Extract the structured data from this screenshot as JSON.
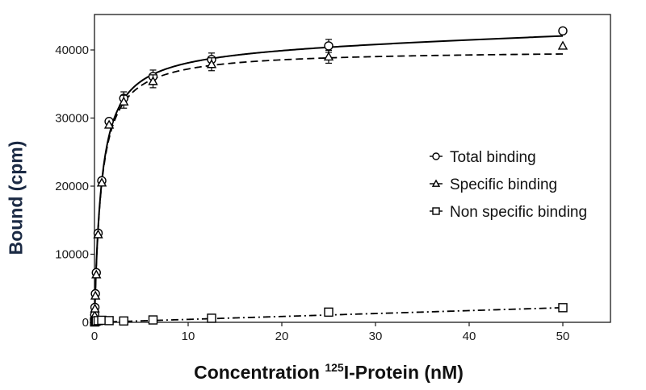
{
  "chart_data": {
    "type": "scatter",
    "title": "",
    "xlabel_prefix": "Concentration ",
    "xlabel_sup": "125",
    "xlabel_suffix": "I-Protein (nM)",
    "xlabel": "Concentration 125I-Protein (nM)",
    "ylabel": "Bound (cpm)",
    "xlim": [
      0,
      55
    ],
    "ylim": [
      0,
      45000
    ],
    "xticks": [
      0,
      10,
      20,
      30,
      40,
      50
    ],
    "yticks": [
      0,
      10000,
      20000,
      30000,
      40000
    ],
    "grid": false,
    "legend_position": "center-right",
    "x": [
      0.024,
      0.049,
      0.098,
      0.195,
      0.39,
      0.78,
      1.56,
      3.125,
      6.25,
      12.5,
      25,
      50
    ],
    "series": [
      {
        "name": "Total binding",
        "marker": "circle",
        "line": "solid",
        "values": [
          500,
          1100,
          2200,
          4200,
          7300,
          13100,
          20800,
          29500,
          32900,
          36100,
          38600,
          40600,
          42800
        ],
        "x": [
          0.012,
          0.024,
          0.049,
          0.098,
          0.195,
          0.39,
          0.78,
          1.56,
          3.125,
          6.25,
          12.5,
          25,
          50
        ],
        "fit": {
          "model": "one-site + linear",
          "Bmax": 40500,
          "Kd": 0.75,
          "ns_slope": 43
        }
      },
      {
        "name": "Specific binding",
        "marker": "triangle",
        "line": "dashed",
        "values": [
          450,
          1000,
          2000,
          3900,
          7000,
          12900,
          20500,
          29000,
          32400,
          35400,
          37900,
          39000,
          40600
        ],
        "x": [
          0.012,
          0.024,
          0.049,
          0.098,
          0.195,
          0.39,
          0.78,
          1.56,
          3.125,
          6.25,
          12.5,
          25,
          50
        ],
        "fit": {
          "model": "one-site",
          "Bmax": 40000,
          "Kd": 0.75
        }
      },
      {
        "name": "Non specific binding",
        "marker": "square",
        "line": "dash-dot",
        "values": [
          50,
          80,
          100,
          150,
          200,
          250,
          300,
          250,
          200,
          350,
          600,
          1500,
          2150
        ],
        "x": [
          0.012,
          0.024,
          0.049,
          0.098,
          0.195,
          0.39,
          0.78,
          1.56,
          3.125,
          6.25,
          12.5,
          25,
          50
        ],
        "fit": {
          "model": "linear",
          "slope": 43,
          "intercept": 0
        }
      }
    ]
  },
  "colors": {
    "axis": "#1a1a1a",
    "ylabel": "#1b2a44",
    "xlabel": "#111111",
    "line": "#000000"
  }
}
